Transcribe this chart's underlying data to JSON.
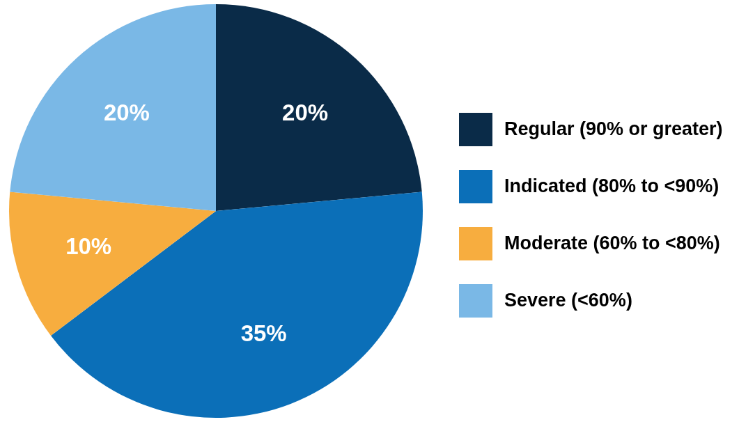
{
  "chart_data": {
    "type": "pie",
    "categories": [
      "Regular (90% or greater)",
      "Indicated (80% to <90%)",
      "Moderate (60% to <80%)",
      "Severe (<60%)"
    ],
    "values": [
      20,
      35,
      10,
      20
    ],
    "value_labels": [
      "20%",
      "35%",
      "10%",
      "20%"
    ],
    "colors": [
      "#0a2b48",
      "#0b6fb8",
      "#f7ad3f",
      "#7ab8e6"
    ],
    "legend": "right"
  }
}
